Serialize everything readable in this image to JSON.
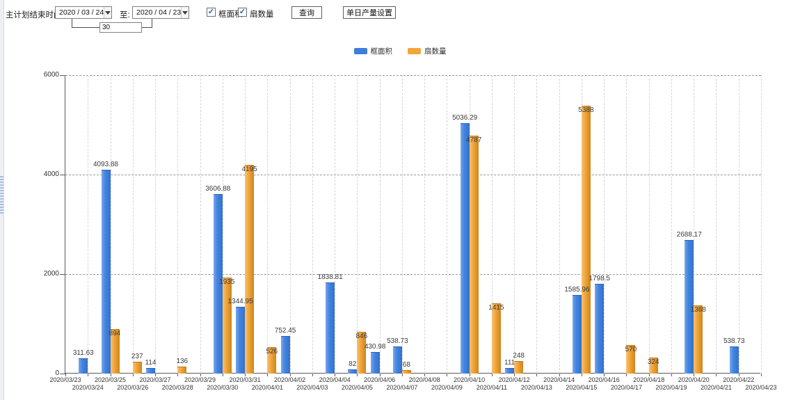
{
  "toolbar": {
    "label": "主计划结束时间:",
    "date_from": "2020 / 03 / 24",
    "to_label": "至:",
    "date_to": "2020 / 04 / 23",
    "interval_value": "30",
    "filters": [
      {
        "label": "框面积",
        "checked": true
      },
      {
        "label": "扇数量",
        "checked": true
      }
    ],
    "query_button": "查询",
    "daily_output_button": "单日产量设置",
    "check_glyph": "✓"
  },
  "legend": {
    "items": [
      {
        "label": "框面积",
        "color": "#3c7edb"
      },
      {
        "label": "扇数量",
        "color": "#f2a63a"
      }
    ]
  },
  "chart_data": {
    "type": "bar",
    "title": "",
    "xlabel": "",
    "ylabel": "",
    "ylim": [
      0,
      6000
    ],
    "yticks": [
      0,
      2000,
      4000,
      6000
    ],
    "grid": true,
    "legend_position": "top",
    "categories": [
      "2020/03/23",
      "2020/03/24",
      "2020/03/25",
      "2020/03/26",
      "2020/03/27",
      "2020/03/28",
      "2020/03/29",
      "2020/03/30",
      "2020/03/31",
      "2020/04/01",
      "2020/04/02",
      "2020/04/03",
      "2020/04/04",
      "2020/04/05",
      "2020/04/06",
      "2020/04/07",
      "2020/04/08",
      "2020/04/09",
      "2020/04/10",
      "2020/04/11",
      "2020/04/12",
      "2020/04/13",
      "2020/04/14",
      "2020/04/15",
      "2020/04/16",
      "2020/04/17",
      "2020/04/18",
      "2020/04/19",
      "2020/04/20",
      "2020/04/21",
      "2020/04/22",
      "2020/04/23"
    ],
    "series": [
      {
        "name": "框面积",
        "color": "#3c7edb",
        "values": [
          null,
          311.63,
          4093.88,
          null,
          114,
          null,
          null,
          3606.88,
          1344.95,
          null,
          752.45,
          null,
          1838.81,
          82,
          430.98,
          538.73,
          null,
          null,
          5036.29,
          null,
          111,
          null,
          null,
          1585.96,
          1798.5,
          null,
          null,
          null,
          2688.17,
          null,
          538.73,
          null
        ]
      },
      {
        "name": "扇数量",
        "color": "#f2a63a",
        "values": [
          null,
          null,
          894,
          237,
          null,
          136,
          null,
          1935,
          4195,
          526,
          null,
          null,
          null,
          846,
          null,
          68,
          null,
          null,
          4787,
          1415,
          248,
          null,
          null,
          5388,
          null,
          570,
          324,
          null,
          1368,
          null,
          null,
          null
        ]
      }
    ]
  }
}
